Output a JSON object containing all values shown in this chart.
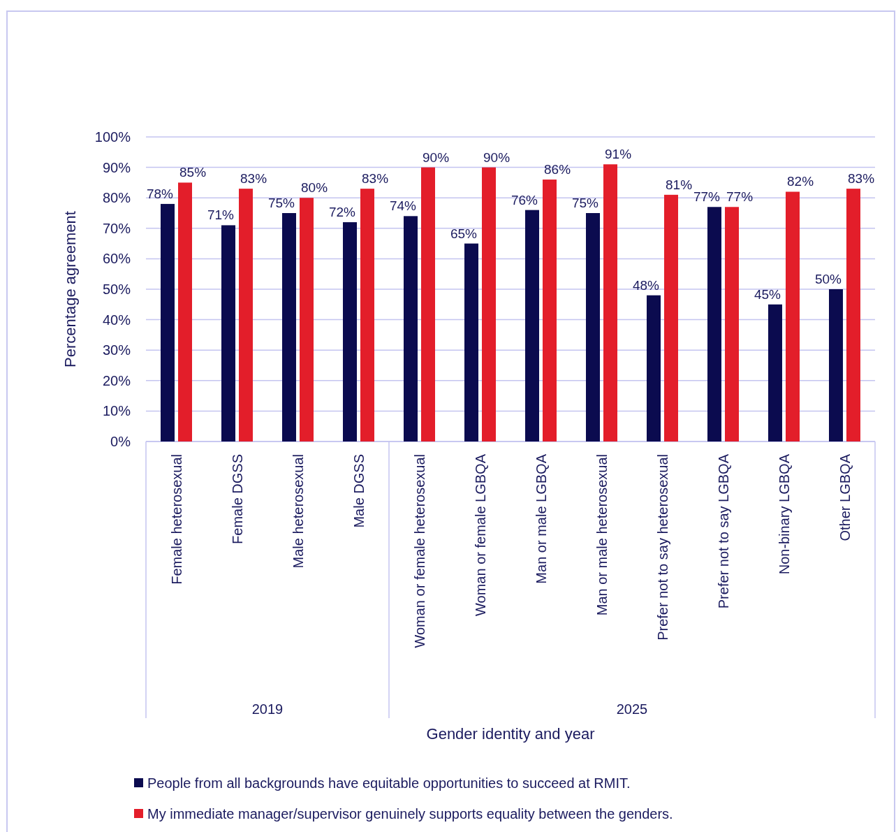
{
  "chart_data": {
    "type": "bar",
    "ylabel": "Percentage agreement",
    "categories": [
      "Female heterosexual",
      "Female DGSS",
      "Male heterosexual",
      "Male DGSS",
      "Woman or female heterosexual",
      "Woman or female LGBQA",
      "Man or male LGBQA",
      "Man or male heterosexual",
      "Prefer not to say heterosexual",
      "Prefer not to say LGBQA",
      "Non-binary LGBQA",
      "Other LGBQA"
    ],
    "annotations": [
      "2019",
      "2025",
      "Gender identity and year"
    ],
    "series": [
      {
        "name": "People from all backgrounds have equitable opportunities to succeed at RMIT.",
        "color": "#0b0b4f",
        "values": [
          78,
          71,
          75,
          72,
          74,
          65,
          76,
          75,
          48,
          77,
          45,
          50
        ],
        "value_labels": [
          "78%",
          "71%",
          "75%",
          "72%",
          "74%",
          "65%",
          "76%",
          "75%",
          "48%",
          "77%",
          "45%",
          "50%"
        ]
      },
      {
        "name": "My immediate manager/supervisor genuinely supports equality between the genders.",
        "color": "#e31e2a",
        "values": [
          85,
          83,
          80,
          83,
          90,
          90,
          86,
          91,
          81,
          77,
          82,
          83
        ],
        "value_labels": [
          "85%",
          "83%",
          "80%",
          "83%",
          "90%",
          "90%",
          "86%",
          "91%",
          "81%",
          "77%",
          "82%",
          "83%"
        ]
      }
    ],
    "ylim": [
      0,
      100
    ],
    "yticks": [
      {
        "value": 0,
        "label": "0%"
      },
      {
        "value": 10,
        "label": "10%"
      },
      {
        "value": 20,
        "label": "20%"
      },
      {
        "value": 30,
        "label": "30%"
      },
      {
        "value": 40,
        "label": "40%"
      },
      {
        "value": 50,
        "label": "50%"
      },
      {
        "value": 60,
        "label": "60%"
      },
      {
        "value": 70,
        "label": "70%"
      },
      {
        "value": 80,
        "label": "80%"
      },
      {
        "value": 90,
        "label": "90%"
      },
      {
        "value": 100,
        "label": "100%"
      }
    ],
    "grid": "y",
    "legend": "bottom"
  }
}
